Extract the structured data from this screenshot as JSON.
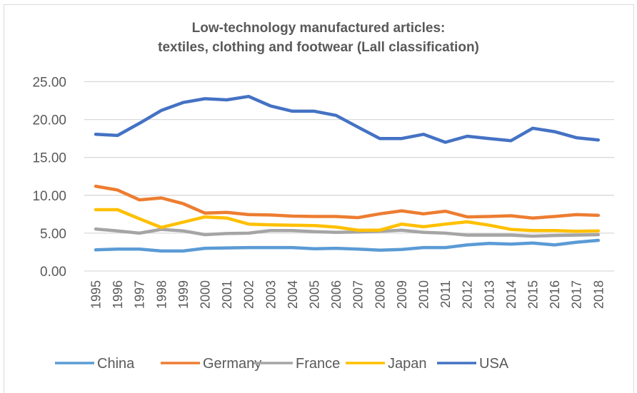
{
  "chart_data": {
    "type": "line",
    "title": "Low-technology manufactured articles:\ntextiles, clothing and footwear (Lall classification)",
    "title_lines": [
      "Low-technology manufactured articles:",
      "textiles, clothing and footwear (Lall classification)"
    ],
    "xlabel": "",
    "ylabel": "",
    "ylim": [
      0,
      25
    ],
    "yticks": [
      "0.00",
      "5.00",
      "10.00",
      "15.00",
      "20.00",
      "25.00"
    ],
    "ytick_values": [
      0,
      5,
      10,
      15,
      20,
      25
    ],
    "grid": true,
    "legend_position": "bottom",
    "x": [
      "1995",
      "1996",
      "1997",
      "1998",
      "1999",
      "2000",
      "2001",
      "2002",
      "2003",
      "2004",
      "2005",
      "2006",
      "2007",
      "2008",
      "2009",
      "2010",
      "2011",
      "2012",
      "2013",
      "2014",
      "2015",
      "2016",
      "2017",
      "2018"
    ],
    "series": [
      {
        "name": "China",
        "color": "#5b9bd5",
        "values": [
          2.8,
          2.9,
          2.9,
          2.65,
          2.65,
          3.0,
          3.05,
          3.1,
          3.1,
          3.1,
          2.95,
          3.0,
          2.9,
          2.75,
          2.85,
          3.1,
          3.1,
          3.45,
          3.65,
          3.55,
          3.7,
          3.45,
          3.8,
          4.05
        ]
      },
      {
        "name": "Germany",
        "color": "#ed7d31",
        "values": [
          11.2,
          10.7,
          9.4,
          9.65,
          8.9,
          7.65,
          7.75,
          7.45,
          7.4,
          7.25,
          7.2,
          7.2,
          7.05,
          7.55,
          7.95,
          7.55,
          7.9,
          7.15,
          7.2,
          7.3,
          7.0,
          7.2,
          7.45,
          7.35
        ]
      },
      {
        "name": "France",
        "color": "#a5a5a5",
        "values": [
          5.55,
          5.3,
          5.0,
          5.5,
          5.3,
          4.8,
          4.95,
          5.0,
          5.35,
          5.35,
          5.2,
          5.1,
          5.15,
          5.25,
          5.4,
          5.1,
          5.0,
          4.75,
          4.75,
          4.75,
          4.6,
          4.7,
          4.75,
          4.8
        ]
      },
      {
        "name": "Japan",
        "color": "#ffc000",
        "values": [
          8.1,
          8.1,
          6.9,
          5.75,
          6.45,
          7.15,
          7.0,
          6.2,
          6.1,
          6.05,
          6.0,
          5.8,
          5.4,
          5.4,
          6.2,
          5.85,
          6.2,
          6.5,
          6.05,
          5.5,
          5.35,
          5.35,
          5.25,
          5.3
        ]
      },
      {
        "name": "USA",
        "color": "#4472c4",
        "values": [
          18.05,
          17.9,
          19.5,
          21.2,
          22.25,
          22.75,
          22.6,
          23.05,
          21.8,
          21.1,
          21.1,
          20.55,
          19.0,
          17.5,
          17.5,
          18.05,
          17.0,
          17.8,
          17.5,
          17.2,
          18.85,
          18.4,
          17.6,
          17.3
        ]
      }
    ]
  }
}
